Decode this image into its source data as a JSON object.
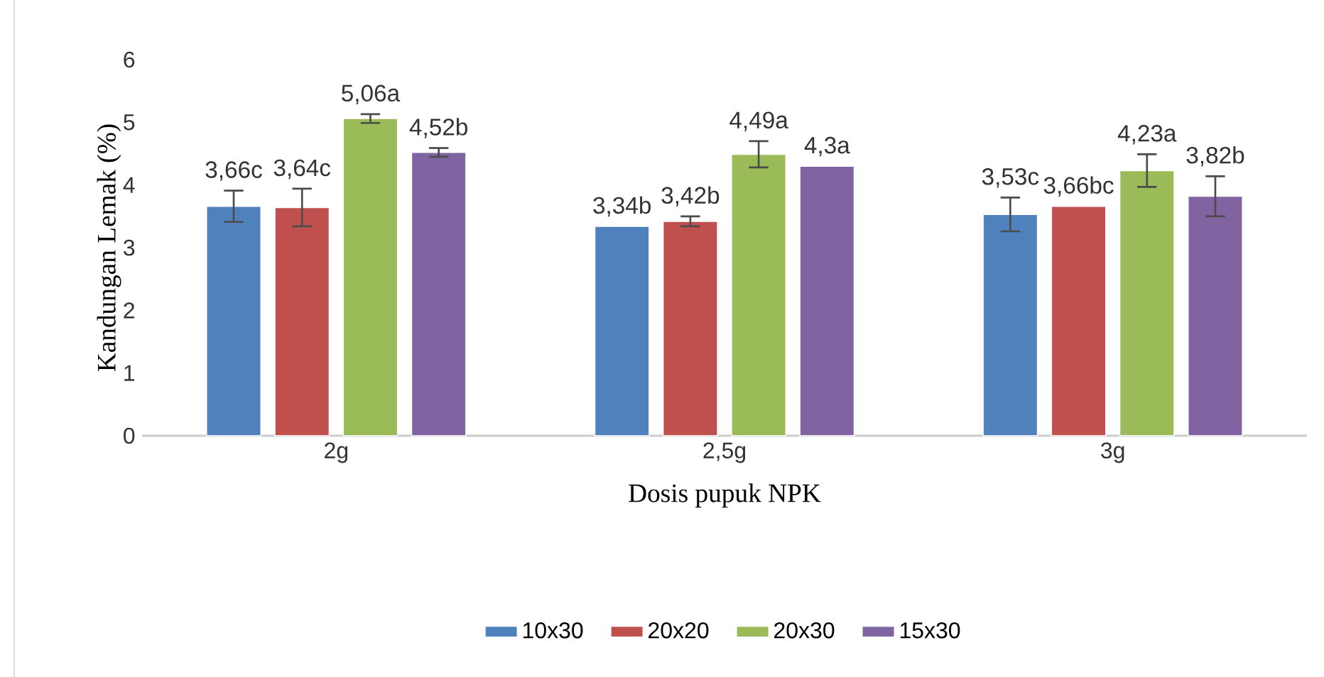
{
  "chart_data": {
    "type": "bar",
    "xlabel": "Dosis pupuk NPK",
    "ylabel": "Kandungan Lemak (%)",
    "categories": [
      "2g",
      "2,5g",
      "3g"
    ],
    "series": [
      {
        "name": "10x30",
        "color": "#4f81bd",
        "values": [
          3.66,
          3.34,
          3.53
        ],
        "errors": [
          0.25,
          null,
          0.27
        ],
        "value_labels": [
          "3,66c",
          "3,34b",
          "3,53c"
        ]
      },
      {
        "name": "20x20",
        "color": "#c0504d",
        "values": [
          3.64,
          3.42,
          3.66
        ],
        "errors": [
          0.3,
          0.08,
          null
        ],
        "value_labels": [
          "3,64c",
          "3,42b",
          "3,66bc"
        ]
      },
      {
        "name": "20x30",
        "color": "#9bbb59",
        "values": [
          5.06,
          4.49,
          4.23
        ],
        "errors": [
          0.07,
          0.21,
          0.26
        ],
        "value_labels": [
          "5,06a",
          "4,49a",
          "4,23a"
        ]
      },
      {
        "name": "15x30",
        "color": "#8064a2",
        "values": [
          4.52,
          4.3,
          3.82
        ],
        "errors": [
          0.07,
          null,
          0.32
        ],
        "value_labels": [
          "4,52b",
          "4,3a",
          "3,82b"
        ]
      }
    ],
    "ylim": [
      0,
      6
    ],
    "yticks": [
      0,
      1,
      2,
      3,
      4,
      5,
      6
    ],
    "legend": "bottom",
    "grid": false
  }
}
